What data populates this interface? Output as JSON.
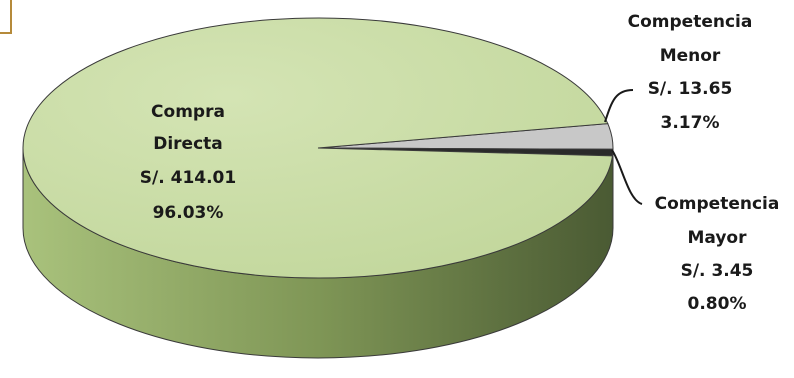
{
  "chart_data": {
    "type": "pie",
    "style": "3d",
    "legend": "none",
    "slices": [
      {
        "name": "Compra Directa",
        "amount_label": "S/. 414.01",
        "value": 414.01,
        "percent_label": "96.03%",
        "percent": 96.03,
        "color": "#c5d9a0"
      },
      {
        "name": "Competencia Menor",
        "amount_label": "S/. 13.65",
        "value": 13.65,
        "percent_label": "3.17%",
        "percent": 3.17,
        "color": "#c8c8c8"
      },
      {
        "name": "Competencia Mayor",
        "amount_label": "S/. 3.45",
        "value": 3.45,
        "percent_label": "0.80%",
        "percent": 0.8,
        "color": "#2a2a2a"
      }
    ],
    "labels": {
      "compra": {
        "lines": [
          "Compra",
          "Directa",
          "S/. 414.01",
          "96.03%"
        ]
      },
      "menor": {
        "lines": [
          "Competencia",
          "Menor",
          "S/. 13.65",
          "3.17%"
        ]
      },
      "mayor": {
        "lines": [
          "Competencia",
          "Mayor",
          "S/. 3.45",
          "0.80%"
        ]
      }
    }
  }
}
